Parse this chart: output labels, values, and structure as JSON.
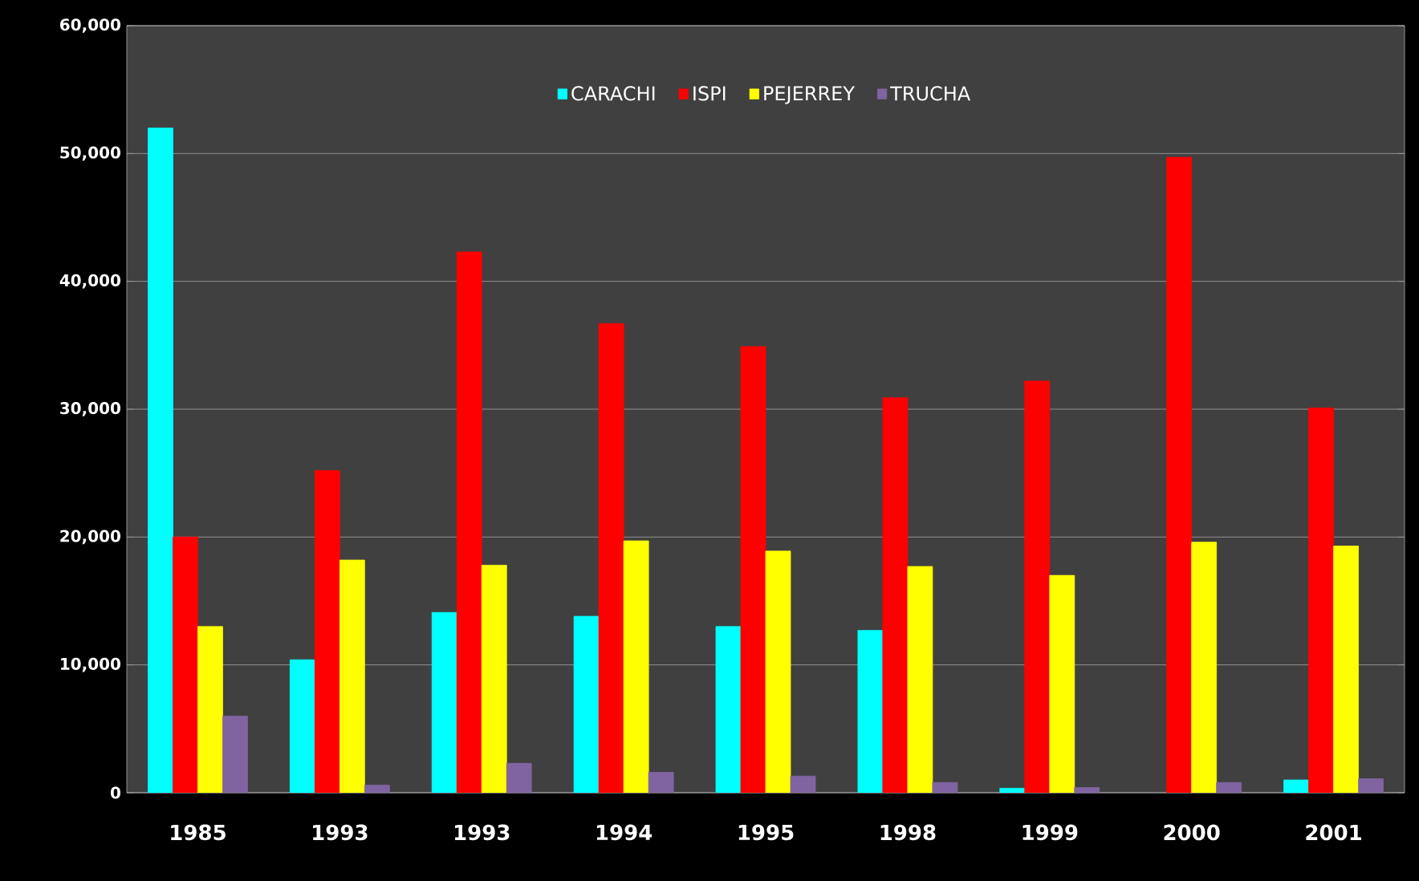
{
  "chart_data": {
    "type": "bar",
    "categories": [
      "1985",
      "1993",
      "1993",
      "1994",
      "1995",
      "1998",
      "1999",
      "2000",
      "2001"
    ],
    "series": [
      {
        "name": "CARACHI",
        "color": "#00ffff",
        "values": [
          52000,
          10400,
          14100,
          13800,
          13000,
          12700,
          350,
          null,
          1000
        ]
      },
      {
        "name": "ISPI",
        "color": "#ff0000",
        "values": [
          20000,
          25200,
          42300,
          36700,
          34900,
          30900,
          32200,
          49700,
          30100
        ]
      },
      {
        "name": "PEJERREY",
        "color": "#ffff00",
        "values": [
          13000,
          18200,
          17800,
          19700,
          18900,
          17700,
          17000,
          19600,
          19300
        ]
      },
      {
        "name": "TRUCHA",
        "color": "#8064a2",
        "values": [
          6000,
          600,
          2300,
          1600,
          1300,
          800,
          400,
          800,
          1100
        ]
      }
    ],
    "ylim": [
      0,
      60000
    ],
    "yticks": [
      0,
      {
        "value": 10000,
        "label": "10,000"
      },
      {
        "value": 20000,
        "label": "20,000"
      },
      {
        "value": 30000,
        "label": "30,000"
      },
      {
        "value": 40000,
        "label": "40,000"
      },
      {
        "value": 50000,
        "label": "50,000"
      },
      {
        "value": 60000,
        "label": "60,000"
      }
    ],
    "grid": "y",
    "legend": "top"
  }
}
